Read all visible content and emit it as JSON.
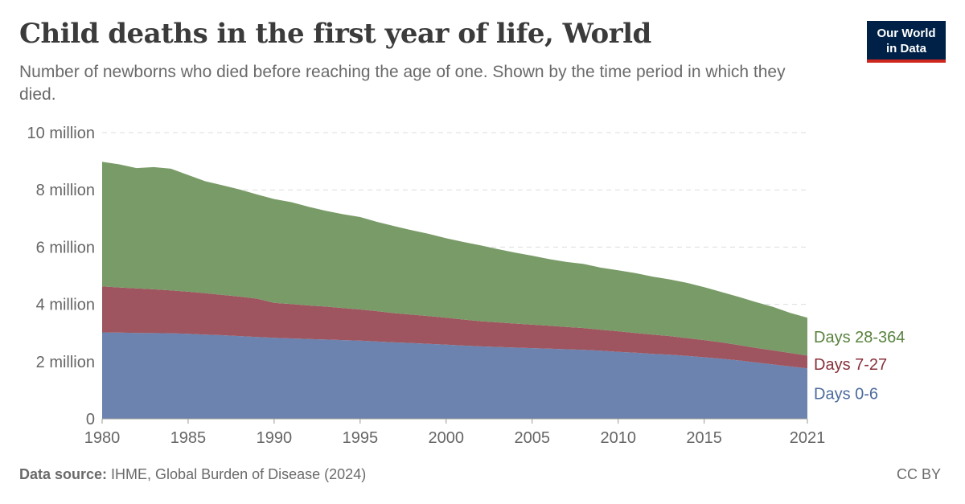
{
  "header": {
    "title": "Child deaths in the first year of life, World",
    "subtitle": "Number of newborns who died before reaching the age of one. Shown by the time period in which they died."
  },
  "logo": {
    "line1": "Our World",
    "line2": "in Data"
  },
  "footer": {
    "source_label": "Data source:",
    "source_text": " IHME, Global Burden of Disease (2024)",
    "license": "CC BY"
  },
  "chart_data": {
    "type": "area",
    "stacked": true,
    "title": "Child deaths in the first year of life, World",
    "x": [
      1980,
      1981,
      1982,
      1983,
      1984,
      1985,
      1986,
      1987,
      1988,
      1989,
      1990,
      1991,
      1992,
      1993,
      1994,
      1995,
      1996,
      1997,
      1998,
      1999,
      2000,
      2001,
      2002,
      2003,
      2004,
      2005,
      2006,
      2007,
      2008,
      2009,
      2010,
      2011,
      2012,
      2013,
      2014,
      2015,
      2016,
      2017,
      2018,
      2019,
      2020,
      2021
    ],
    "x_ticks": [
      1980,
      1985,
      1990,
      1995,
      2000,
      2005,
      2010,
      2015,
      2021
    ],
    "y_ticks": [
      0,
      2000000,
      4000000,
      6000000,
      8000000,
      10000000
    ],
    "y_tick_labels": [
      "0",
      "2 million",
      "4 million",
      "6 million",
      "8 million",
      "10 million"
    ],
    "ylim": [
      0,
      10000000
    ],
    "grid": "horizontal-dashed",
    "legend": "right-inline",
    "series": [
      {
        "name": "Days 0-6",
        "color": "#6b83ae",
        "values": [
          3020000,
          3010000,
          3000000,
          2995000,
          2990000,
          2970000,
          2940000,
          2920000,
          2890000,
          2860000,
          2830000,
          2810000,
          2790000,
          2770000,
          2750000,
          2730000,
          2700000,
          2670000,
          2650000,
          2620000,
          2590000,
          2560000,
          2530000,
          2510000,
          2490000,
          2470000,
          2450000,
          2430000,
          2410000,
          2380000,
          2340000,
          2310000,
          2270000,
          2240000,
          2200000,
          2150000,
          2100000,
          2040000,
          1970000,
          1900000,
          1830000,
          1760000
        ]
      },
      {
        "name": "Days 7-27",
        "color": "#9e5560",
        "values": [
          1610000,
          1580000,
          1560000,
          1530000,
          1500000,
          1470000,
          1450000,
          1410000,
          1380000,
          1340000,
          1220000,
          1200000,
          1170000,
          1150000,
          1120000,
          1090000,
          1060000,
          1020000,
          990000,
          970000,
          940000,
          910000,
          880000,
          860000,
          840000,
          820000,
          800000,
          780000,
          760000,
          730000,
          720000,
          690000,
          670000,
          650000,
          620000,
          600000,
          570000,
          540000,
          510000,
          490000,
          470000,
          450000
        ]
      },
      {
        "name": "Days 28-364",
        "color": "#789b67",
        "values": [
          4350000,
          4300000,
          4200000,
          4270000,
          4250000,
          4080000,
          3910000,
          3830000,
          3740000,
          3640000,
          3630000,
          3560000,
          3450000,
          3350000,
          3280000,
          3230000,
          3120000,
          3040000,
          2950000,
          2870000,
          2780000,
          2710000,
          2650000,
          2560000,
          2480000,
          2410000,
          2330000,
          2270000,
          2240000,
          2170000,
          2130000,
          2090000,
          2030000,
          1980000,
          1930000,
          1850000,
          1760000,
          1680000,
          1600000,
          1520000,
          1400000,
          1320000
        ]
      }
    ]
  }
}
